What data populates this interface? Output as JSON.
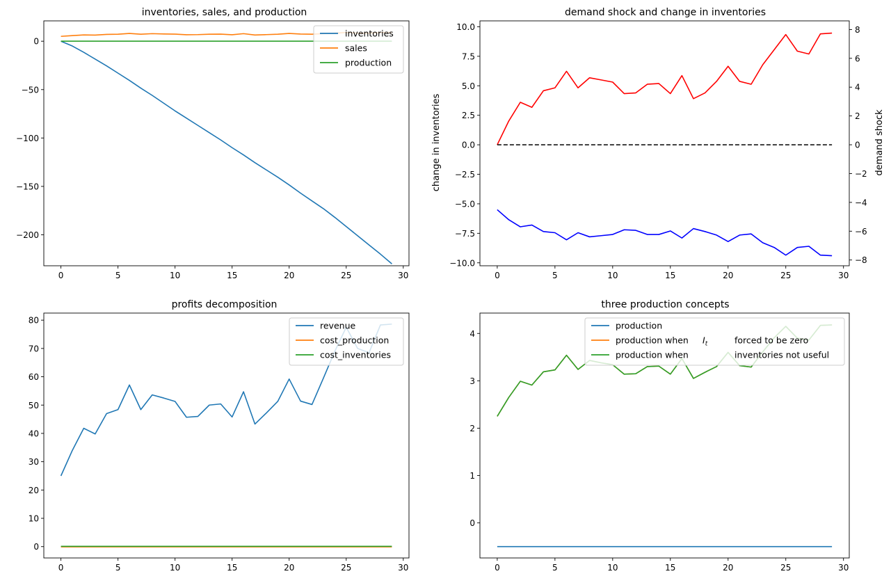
{
  "figure": {
    "background": "#ffffff"
  },
  "chart_data": [
    {
      "id": "c1",
      "type": "line",
      "title": "inventories, sales, and production",
      "xlim": [
        -1.5,
        30.5
      ],
      "ylim": [
        -232,
        21
      ],
      "xticks": [
        0,
        5,
        10,
        15,
        20,
        25,
        30
      ],
      "yticks": [
        0,
        -50,
        -100,
        -150,
        -200
      ],
      "ytick_labels": [
        "0",
        "−50",
        "−100",
        "−150",
        "−200"
      ],
      "grid": false,
      "legend": {
        "placement": "top-right",
        "entries": [
          "inventories",
          "sales",
          "production"
        ]
      },
      "series": [
        {
          "name": "inventories",
          "color": "#1f77b4",
          "x": [
            0,
            1,
            2,
            3,
            4,
            5,
            6,
            7,
            8,
            9,
            10,
            11,
            12,
            13,
            14,
            15,
            16,
            17,
            18,
            19,
            20,
            21,
            22,
            23,
            24,
            25,
            26,
            27,
            28,
            29
          ],
          "values": [
            0,
            -5,
            -11.5,
            -18.5,
            -25.5,
            -33,
            -40.5,
            -48.5,
            -56,
            -64,
            -72,
            -79.5,
            -87,
            -94.5,
            -102,
            -110,
            -117.5,
            -125.5,
            -133,
            -140.5,
            -148.5,
            -157,
            -165,
            -173,
            -182,
            -191.5,
            -201,
            -210.5,
            -220,
            -230
          ]
        },
        {
          "name": "sales",
          "color": "#ff7f0e",
          "x": [
            0,
            1,
            2,
            3,
            4,
            5,
            6,
            7,
            8,
            9,
            10,
            11,
            12,
            13,
            14,
            15,
            16,
            17,
            18,
            19,
            20,
            21,
            22,
            23,
            24,
            25,
            26,
            27,
            28,
            29
          ],
          "values": [
            5,
            5.8,
            6.5,
            6.3,
            7,
            7.2,
            8,
            7.2,
            7.8,
            7.5,
            7.3,
            6.7,
            6.8,
            7.2,
            7.3,
            6.7,
            7.8,
            6.4,
            6.8,
            7.2,
            8,
            7.4,
            7.2,
            7.8,
            8.3,
            9,
            8.4,
            8.2,
            9,
            9.1
          ]
        },
        {
          "name": "production",
          "color": "#2ca02c",
          "x": [
            0,
            29
          ],
          "values": [
            0,
            0
          ]
        }
      ]
    },
    {
      "id": "c2",
      "type": "line",
      "title": "demand shock and change in inventories",
      "xlim": [
        -1.5,
        30.5
      ],
      "ylim": [
        -10.25,
        10.5
      ],
      "y2lim": [
        -8.4,
        8.6
      ],
      "xticks": [
        0,
        5,
        10,
        15,
        20,
        25,
        30
      ],
      "yticks": [
        10,
        7.5,
        5,
        2.5,
        0,
        -2.5,
        -5,
        -7.5,
        -10
      ],
      "ytick_labels": [
        "10.0",
        "7.5",
        "5.0",
        "2.5",
        "0.0",
        "−2.5",
        "−5.0",
        "−7.5",
        "−10.0"
      ],
      "y2ticks": [
        8,
        6,
        4,
        2,
        0,
        -2,
        -4,
        -6,
        -8
      ],
      "y2tick_labels": [
        "8",
        "6",
        "4",
        "2",
        "0",
        "−2",
        "−4",
        "−6",
        "−8"
      ],
      "ylabel": "change in inventories",
      "ylabel_color": "#0000ff",
      "y2label": "demand shock",
      "y2label_color": "#ff0000",
      "grid": false,
      "series": [
        {
          "axis": "left",
          "color": "#0000ff",
          "dash": false,
          "x": [
            0,
            1,
            2,
            3,
            4,
            5,
            6,
            7,
            8,
            9,
            10,
            11,
            12,
            13,
            14,
            15,
            16,
            17,
            18,
            19,
            20,
            21,
            22,
            23,
            24,
            25,
            26,
            27,
            28,
            29
          ],
          "values": [
            -5.5,
            -6.35,
            -6.95,
            -6.8,
            -7.35,
            -7.45,
            -8.05,
            -7.45,
            -7.8,
            -7.7,
            -7.6,
            -7.2,
            -7.25,
            -7.6,
            -7.6,
            -7.3,
            -7.9,
            -7.1,
            -7.35,
            -7.65,
            -8.2,
            -7.65,
            -7.55,
            -8.3,
            -8.7,
            -9.35,
            -8.7,
            -8.6,
            -9.35,
            -9.4
          ]
        },
        {
          "axis": "right",
          "color": "#ff0000",
          "dash": false,
          "x": [
            0,
            1,
            2,
            3,
            4,
            5,
            6,
            7,
            8,
            9,
            10,
            11,
            12,
            13,
            14,
            15,
            16,
            17,
            18,
            19,
            20,
            21,
            22,
            23,
            24,
            25,
            26,
            27,
            28,
            29
          ],
          "values": [
            0,
            1.65,
            2.95,
            2.6,
            3.75,
            3.95,
            5.1,
            3.95,
            4.65,
            4.5,
            4.35,
            3.55,
            3.6,
            4.2,
            4.25,
            3.55,
            4.8,
            3.2,
            3.6,
            4.4,
            5.45,
            4.4,
            4.2,
            5.55,
            6.6,
            7.65,
            6.5,
            6.3,
            7.7,
            7.75
          ]
        },
        {
          "axis": "left",
          "color": "#000000",
          "dash": true,
          "x": [
            0,
            29
          ],
          "values": [
            0,
            0
          ]
        }
      ]
    },
    {
      "id": "c3",
      "type": "line",
      "title": "profits decomposition",
      "xlim": [
        -1.5,
        30.5
      ],
      "ylim": [
        -4,
        82.5
      ],
      "xticks": [
        0,
        5,
        10,
        15,
        20,
        25,
        30
      ],
      "yticks": [
        0,
        10,
        20,
        30,
        40,
        50,
        60,
        70,
        80
      ],
      "ytick_labels": [
        "0",
        "10",
        "20",
        "30",
        "40",
        "50",
        "60",
        "70",
        "80"
      ],
      "grid": false,
      "legend": {
        "placement": "top-right",
        "entries": [
          "revenue",
          "cost_production",
          "cost_inventories"
        ]
      },
      "series": [
        {
          "name": "revenue",
          "color": "#1f77b4",
          "x": [
            0,
            1,
            2,
            3,
            4,
            5,
            6,
            7,
            8,
            9,
            10,
            11,
            12,
            13,
            14,
            15,
            16,
            17,
            18,
            19,
            20,
            21,
            22,
            23,
            24,
            25,
            26,
            27,
            28,
            29
          ],
          "values": [
            25,
            34,
            41.8,
            39.8,
            47,
            48.4,
            57.1,
            48.4,
            53.6,
            52.5,
            51.3,
            45.7,
            46,
            50,
            50.4,
            45.8,
            54.7,
            43.3,
            47.2,
            51.3,
            59.2,
            51.4,
            50.2,
            59.5,
            69,
            77.5,
            70,
            68.5,
            78.3,
            78.6
          ]
        },
        {
          "name": "cost_production",
          "color": "#ff7f0e",
          "x": [
            0,
            29
          ],
          "values": [
            -0.1,
            -0.1
          ]
        },
        {
          "name": "cost_inventories",
          "color": "#2ca02c",
          "x": [
            0,
            29
          ],
          "values": [
            0.1,
            0.1
          ]
        }
      ]
    },
    {
      "id": "c4",
      "type": "line",
      "title": "three production concepts",
      "xlim": [
        -1.5,
        30.5
      ],
      "ylim": [
        -0.74,
        4.43
      ],
      "xticks": [
        0,
        5,
        10,
        15,
        20,
        25,
        30
      ],
      "yticks": [
        0,
        1,
        2,
        3,
        4
      ],
      "ytick_labels": [
        "0",
        "1",
        "2",
        "3",
        "4"
      ],
      "grid": false,
      "legend": {
        "placement": "top-right",
        "entries": [
          {
            "a": "production",
            "b": "",
            "c": ""
          },
          {
            "a": "production when",
            "b": "I",
            "sub": "t",
            "c": "forced to be zero"
          },
          {
            "a": "production when",
            "b": "",
            "c": "inventories not useful"
          }
        ]
      },
      "series": [
        {
          "name": "production",
          "color": "#1f77b4",
          "x": [
            0,
            29
          ],
          "values": [
            -0.5,
            -0.5
          ]
        },
        {
          "name": "production when It forced to be zero",
          "color": "#ff7f0e",
          "x": [
            0,
            1,
            2,
            3,
            4,
            5,
            6,
            7,
            8,
            9,
            10,
            11,
            12,
            13,
            14,
            15,
            16,
            17,
            18,
            19,
            20,
            21,
            22,
            23,
            24,
            25,
            26,
            27,
            28,
            29
          ],
          "values": [
            2.25,
            2.65,
            2.99,
            2.91,
            3.19,
            3.23,
            3.54,
            3.24,
            3.43,
            3.38,
            3.34,
            3.14,
            3.15,
            3.3,
            3.31,
            3.14,
            3.47,
            3.05,
            3.18,
            3.3,
            3.6,
            3.32,
            3.29,
            3.61,
            3.91,
            4.15,
            3.9,
            3.86,
            4.17,
            4.18
          ]
        },
        {
          "name": "production when inventories not useful",
          "color": "#2ca02c",
          "x": [
            0,
            1,
            2,
            3,
            4,
            5,
            6,
            7,
            8,
            9,
            10,
            11,
            12,
            13,
            14,
            15,
            16,
            17,
            18,
            19,
            20,
            21,
            22,
            23,
            24,
            25,
            26,
            27,
            28,
            29
          ],
          "values": [
            2.25,
            2.65,
            2.99,
            2.91,
            3.19,
            3.23,
            3.54,
            3.24,
            3.43,
            3.38,
            3.34,
            3.14,
            3.15,
            3.3,
            3.31,
            3.14,
            3.47,
            3.05,
            3.18,
            3.3,
            3.6,
            3.32,
            3.29,
            3.61,
            3.91,
            4.15,
            3.9,
            3.86,
            4.17,
            4.18
          ]
        }
      ]
    }
  ]
}
